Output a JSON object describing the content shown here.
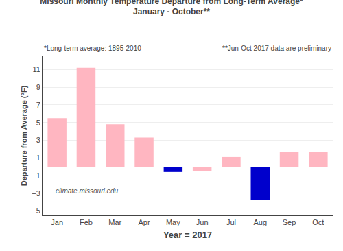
{
  "chart_data": {
    "type": "bar",
    "title": "Missouri Monthly Temperature Departure from Long-Term Average*",
    "subtitle": "January - October**",
    "x_label": "Year = 2017",
    "y_label": "Departure from Average (°F)",
    "annotations": [
      "*Long-term average: 1895-2010",
      "**Jun-Oct 2017 data are preliminary",
      "climate.missouri.edu"
    ],
    "categories": [
      "Jan",
      "Feb",
      "Mar",
      "Apr",
      "May",
      "Jun",
      "Jul",
      "Aug",
      "Sep",
      "Oct"
    ],
    "values": [
      5.5,
      11.2,
      4.8,
      3.3,
      -0.6,
      -0.5,
      1.1,
      -3.8,
      1.7,
      1.7
    ],
    "colors": [
      "#FFB6C1",
      "#FFB6C1",
      "#FFB6C1",
      "#FFB6C1",
      "#0000CC",
      "#FFB6C1",
      "#FFB6C1",
      "#0000CC",
      "#FFB6C1",
      "#FFB6C1"
    ],
    "ylim": [
      -5.5,
      12.5
    ],
    "yticks": [
      -5,
      -3,
      -1,
      1,
      3,
      5,
      7,
      9,
      11
    ],
    "grid": true
  }
}
